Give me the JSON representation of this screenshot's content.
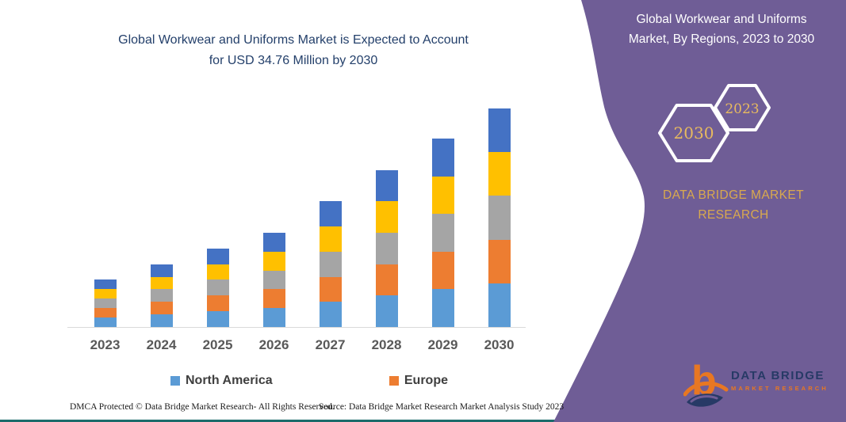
{
  "page": {
    "title_line1": "Global Workwear and Uniforms Market is Expected to Account",
    "title_line2": "for USD 34.76 Million by 2030"
  },
  "sidebar": {
    "heading_line1": "Global Workwear and Uniforms",
    "heading_line2": "Market, By Regions, 2023 to 2030",
    "hexagon_large_label": "2030",
    "hexagon_small_label": "2023",
    "brand_line1": "DATA BRIDGE MARKET",
    "brand_line2": "RESEARCH",
    "logo_text_primary": "DATA BRIDGE",
    "logo_text_secondary": "MARKET RESEARCH",
    "colors": {
      "panel_purple": "#6f5d96",
      "accent_gold": "#d9a94e",
      "logo_navy": "#273a66",
      "logo_orange": "#e87722"
    }
  },
  "chart_data": {
    "type": "bar",
    "stacked": true,
    "title": "Global Workwear and Uniforms Market is Expected to Account for USD 34.76 Million by 2030",
    "unit": "USD Million",
    "categories": [
      "2023",
      "2024",
      "2025",
      "2026",
      "2027",
      "2028",
      "2029",
      "2030"
    ],
    "series": [
      {
        "name": "North America",
        "color": "#5b9bd5",
        "values": [
          1.5,
          2.0,
          2.5,
          3.0,
          4.0,
          5.0,
          6.0,
          6.95
        ]
      },
      {
        "name": "Europe",
        "color": "#ed7d31",
        "values": [
          1.5,
          2.0,
          2.5,
          3.0,
          4.0,
          5.0,
          6.0,
          6.95
        ]
      },
      {
        "name": "unlabeled-gray-series",
        "color": "#a5a5a5",
        "values": [
          1.5,
          2.0,
          2.5,
          3.0,
          4.0,
          5.0,
          6.0,
          6.95
        ]
      },
      {
        "name": "unlabeled-yellow-series",
        "color": "#ffc000",
        "values": [
          1.5,
          2.0,
          2.5,
          3.0,
          4.0,
          5.0,
          6.0,
          6.95
        ]
      },
      {
        "name": "unlabeled-blue-series",
        "color": "#4472c4",
        "values": [
          1.5,
          2.0,
          2.5,
          3.0,
          4.0,
          5.0,
          6.0,
          6.96
        ]
      }
    ],
    "totals": [
      7.5,
      10,
      12.5,
      15,
      20,
      25,
      30,
      34.76
    ],
    "legend": [
      "North America",
      "Europe"
    ],
    "legend_position": "bottom",
    "grid": false,
    "x_axis_labels_style": "bold gray",
    "ylim": [
      0,
      35
    ]
  },
  "footer": {
    "left": "DMCA Protected © Data Bridge Market Research-  All Rights Reserved.",
    "right": "Source: Data Bridge Market Research  Market Analysis Study 2023"
  }
}
